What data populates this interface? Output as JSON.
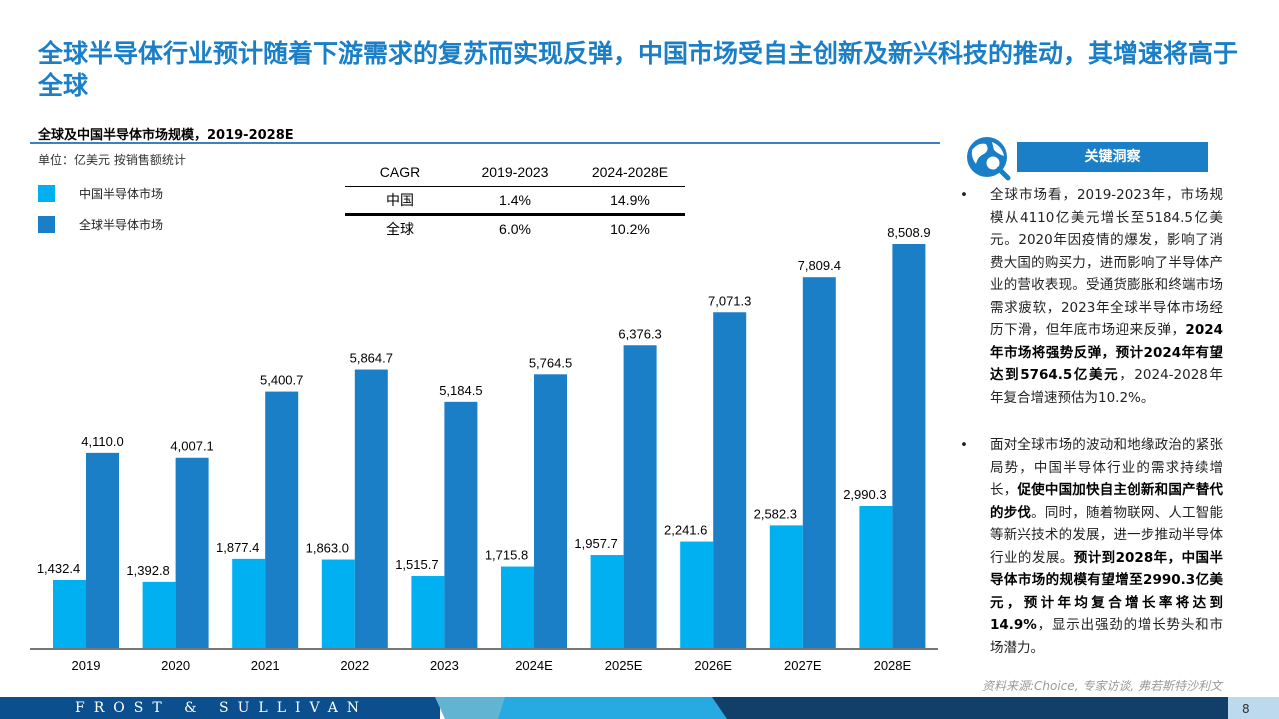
{
  "title": "全球半导体行业预计随着下游需求的复苏而实现反弹，中国市场受自主创新及新兴科技的推动，其增速将高于全球",
  "chart_data": {
    "type": "bar",
    "title": "全球及中国半导体市场规模，2019-2028E",
    "unit": "单位：亿美元 按销售额统计",
    "categories": [
      "2019",
      "2020",
      "2021",
      "2022",
      "2023",
      "2024E",
      "2025E",
      "2026E",
      "2027E",
      "2028E"
    ],
    "series": [
      {
        "name": "中国半导体市场",
        "color": "#00b0f0",
        "values": [
          1432.4,
          1392.8,
          1877.4,
          1863.0,
          1515.7,
          1715.8,
          1957.7,
          2241.6,
          2582.3,
          2990.3
        ],
        "labels": [
          "1,432.4",
          "1,392.8",
          "1,877.4",
          "1,863.0",
          "1,515.7",
          "1,715.8",
          "1,957.7",
          "2,241.6",
          "2,582.3",
          "2,990.3"
        ]
      },
      {
        "name": "全球半导体市场",
        "color": "#1a7fc6",
        "values": [
          4110.0,
          4007.1,
          5400.7,
          5864.7,
          5184.5,
          5764.5,
          6376.3,
          7071.3,
          7809.4,
          8508.9
        ],
        "labels": [
          "4,110.0",
          "4,007.1",
          "5,400.7",
          "5,864.7",
          "5,184.5",
          "5,764.5",
          "6,376.3",
          "7,071.3",
          "7,809.4",
          "8,508.9"
        ]
      }
    ],
    "ylim": [
      0,
      8508.9
    ],
    "legend": "top-left",
    "grid": false
  },
  "cagr_table": {
    "headers": [
      "CAGR",
      "2019-2023",
      "2024-2028E"
    ],
    "rows": [
      [
        "中国",
        "1.4%",
        "14.9%"
      ],
      [
        "全球",
        "6.0%",
        "10.2%"
      ]
    ]
  },
  "insights": {
    "header": "关键洞察",
    "icon": "globe-search-icon",
    "b1": [
      {
        "t": "全球市场看，2019-2023年，市场规模从4110亿美元增长至5184.5亿美元。2020年因疫情的爆发，影响了消费大国的购买力，进而影响了半导体产业的营收表现。受通货膨胀和终端市场需求疲软，2023年全球半导体市场经历下滑，但年底市场迎来反弹，"
      },
      {
        "b": "2024年市场将强势反弹，预计2024年有望达到5764.5亿美元"
      },
      {
        "t": "，2024-2028年年复合增速预估为10.2%。"
      }
    ],
    "b2": [
      {
        "t": "面对全球市场的波动和地缘政治的紧张局势，中国半导体行业的需求持续增长，"
      },
      {
        "b": "促使中国加快自主创新和国产替代的步伐"
      },
      {
        "t": "。同时，随着物联网、人工智能等新兴技术的发展，进一步推动半导体行业的发展。"
      },
      {
        "b": "预计到2028年，中国半导体市场的规模有望增至2990.3亿美元，预计年均复合增长率将达到14.9%"
      },
      {
        "t": "，显示出强劲的增长势头和市场潜力。"
      }
    ]
  },
  "source": "资料来源:Choice, 专家访谈, 弗若斯特沙利文",
  "footer": {
    "brand": "FROST & SULLIVAN",
    "page": "8"
  },
  "colors": {
    "accent": "#1a7fc6",
    "china": "#00b0f0",
    "footer_dark": "#0b4f8e",
    "footer_navy": "#123f6a"
  }
}
